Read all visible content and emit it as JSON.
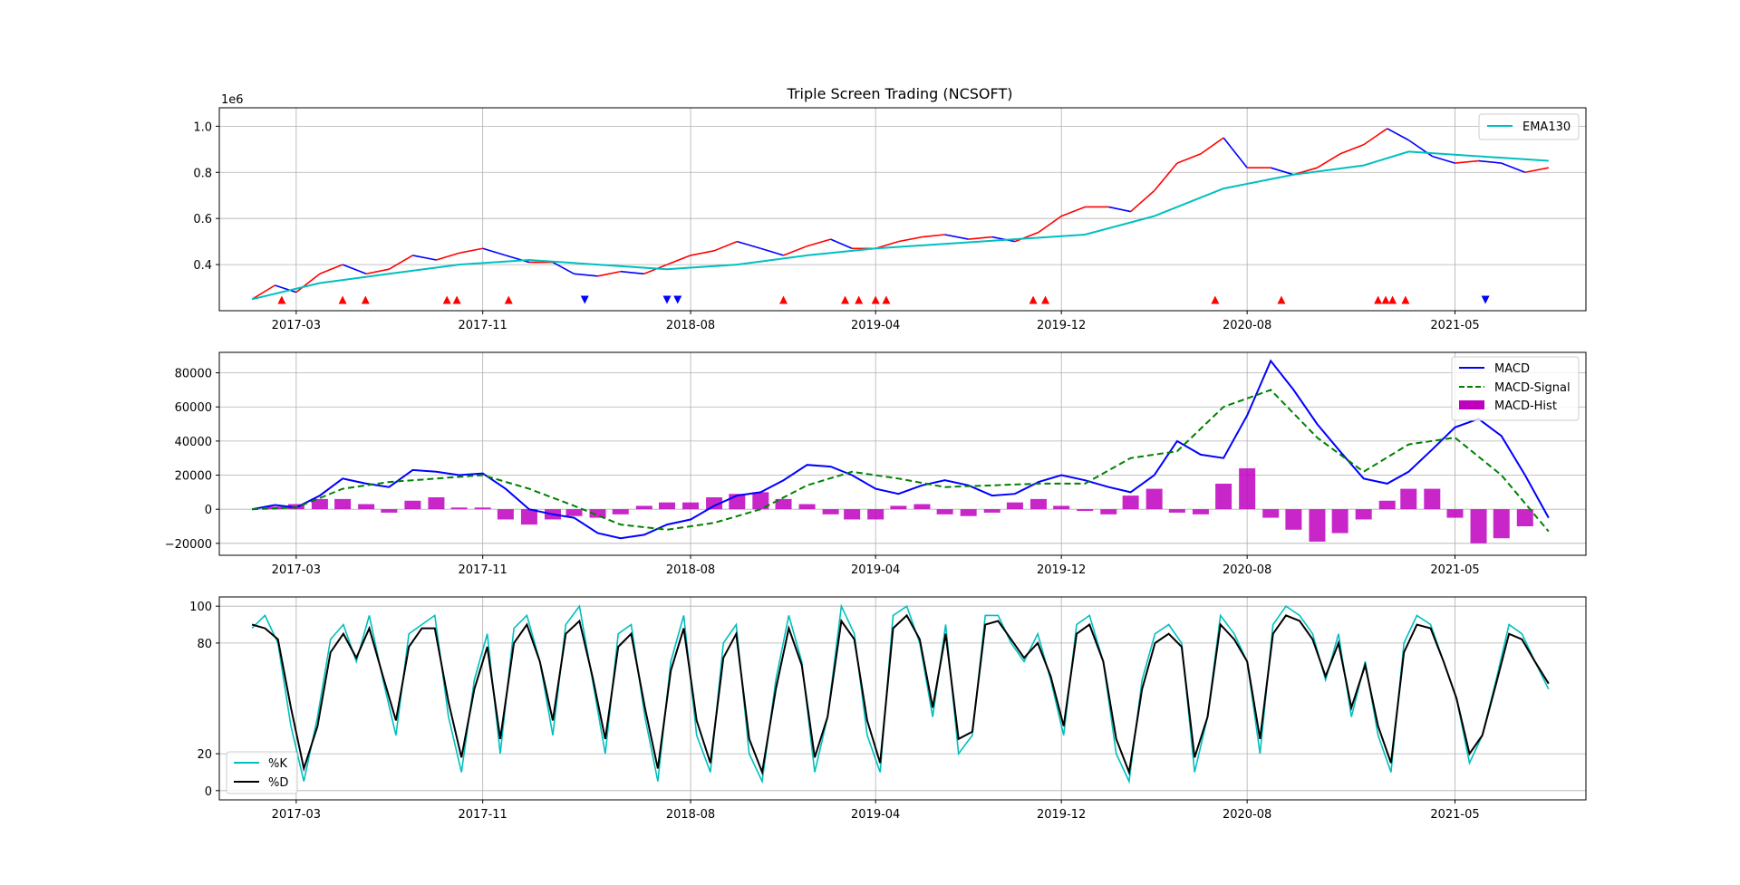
{
  "figure": {
    "title": "Triple Screen Trading (NCSOFT)",
    "background": "#ffffff"
  },
  "chart_data": [
    {
      "panel": "price",
      "type": "line",
      "title": "Triple Screen Trading (NCSOFT)",
      "x_tick_labels": [
        "2017-03",
        "2017-11",
        "2018-08",
        "2019-04",
        "2019-12",
        "2020-08",
        "2021-05"
      ],
      "x_ticks": [
        "2017-03-01",
        "2017-11-01",
        "2018-08-01",
        "2019-04-01",
        "2019-12-01",
        "2020-08-01",
        "2021-05-01"
      ],
      "x_range": [
        "2016-11-20",
        "2021-10-20"
      ],
      "y_scale_label": "1e6",
      "y_ticks": [
        0.4,
        0.6,
        0.8,
        1.0
      ],
      "ylim": [
        0.2,
        1.08
      ],
      "grid": true,
      "legend_position": "top-right",
      "candle_colors": {
        "up": "#ff0000",
        "down": "#0000ff"
      },
      "price": {
        "x": [
          "2017-01-02",
          "2017-02-01",
          "2017-03-01",
          "2017-04-01",
          "2017-05-01",
          "2017-06-01",
          "2017-07-01",
          "2017-08-01",
          "2017-09-01",
          "2017-10-01",
          "2017-11-01",
          "2017-12-01",
          "2018-01-01",
          "2018-02-01",
          "2018-03-01",
          "2018-04-01",
          "2018-05-01",
          "2018-06-01",
          "2018-07-01",
          "2018-08-01",
          "2018-09-01",
          "2018-10-01",
          "2018-11-01",
          "2018-12-01",
          "2019-01-01",
          "2019-02-01",
          "2019-03-01",
          "2019-04-01",
          "2019-05-01",
          "2019-06-01",
          "2019-07-01",
          "2019-08-01",
          "2019-09-01",
          "2019-10-01",
          "2019-11-01",
          "2019-12-01",
          "2020-01-01",
          "2020-02-01",
          "2020-03-01",
          "2020-04-01",
          "2020-05-01",
          "2020-06-01",
          "2020-07-01",
          "2020-08-01",
          "2020-09-01",
          "2020-10-01",
          "2020-11-01",
          "2020-12-01",
          "2021-01-01",
          "2021-02-01",
          "2021-03-01",
          "2021-04-01",
          "2021-05-01",
          "2021-06-01",
          "2021-07-01",
          "2021-08-01",
          "2021-09-01"
        ],
        "close": [
          0.25,
          0.31,
          0.28,
          0.36,
          0.4,
          0.36,
          0.38,
          0.44,
          0.42,
          0.45,
          0.47,
          0.44,
          0.41,
          0.41,
          0.36,
          0.35,
          0.37,
          0.36,
          0.4,
          0.44,
          0.46,
          0.5,
          0.47,
          0.44,
          0.48,
          0.51,
          0.47,
          0.47,
          0.5,
          0.52,
          0.53,
          0.51,
          0.52,
          0.5,
          0.54,
          0.61,
          0.65,
          0.65,
          0.63,
          0.72,
          0.84,
          0.88,
          0.95,
          0.82,
          0.82,
          0.79,
          0.82,
          0.88,
          0.92,
          0.99,
          0.94,
          0.87,
          0.84,
          0.85,
          0.84,
          0.8,
          0.82
        ]
      },
      "ema130": {
        "name": "EMA130",
        "color": "#00bfbf",
        "x": [
          "2017-01-02",
          "2017-04-01",
          "2017-07-01",
          "2017-10-01",
          "2018-01-01",
          "2018-04-01",
          "2018-07-01",
          "2018-10-01",
          "2019-01-01",
          "2019-04-01",
          "2019-07-01",
          "2019-10-01",
          "2020-01-01",
          "2020-04-01",
          "2020-07-01",
          "2020-10-01",
          "2021-01-01",
          "2021-03-01",
          "2021-06-01",
          "2021-09-01"
        ],
        "values": [
          0.25,
          0.32,
          0.36,
          0.4,
          0.42,
          0.4,
          0.38,
          0.4,
          0.44,
          0.47,
          0.49,
          0.51,
          0.53,
          0.61,
          0.73,
          0.79,
          0.83,
          0.89,
          0.87,
          0.85
        ]
      },
      "buy_signals": {
        "marker": "triangle-up",
        "color": "#ff0000",
        "y": 0.245,
        "x": [
          "2017-02-10",
          "2017-05-01",
          "2017-05-31",
          "2017-09-15",
          "2017-09-28",
          "2017-12-05",
          "2018-12-01",
          "2019-02-20",
          "2019-03-10",
          "2019-04-01",
          "2019-04-15",
          "2019-10-25",
          "2019-11-10",
          "2020-06-20",
          "2020-09-15",
          "2021-01-20",
          "2021-01-30",
          "2021-02-08",
          "2021-02-25"
        ]
      },
      "sell_signals": {
        "marker": "triangle-down",
        "color": "#0000ff",
        "y": 0.245,
        "x": [
          "2018-03-15",
          "2018-07-01",
          "2018-07-15",
          "2021-06-10"
        ]
      }
    },
    {
      "panel": "macd",
      "type": "line",
      "x_tick_labels": [
        "2017-03",
        "2017-11",
        "2018-08",
        "2019-04",
        "2019-12",
        "2020-08",
        "2021-05"
      ],
      "y_ticks": [
        -20000,
        0,
        20000,
        40000,
        60000,
        80000
      ],
      "ylim": [
        -27000,
        92000
      ],
      "grid": true,
      "legend_position": "top-right",
      "series": [
        {
          "name": "MACD",
          "color": "#0000ff",
          "style": "solid",
          "x": [
            "2017-01-02",
            "2017-02-01",
            "2017-03-01",
            "2017-04-01",
            "2017-05-01",
            "2017-06-01",
            "2017-07-01",
            "2017-08-01",
            "2017-09-01",
            "2017-10-01",
            "2017-11-01",
            "2017-12-01",
            "2018-01-01",
            "2018-02-01",
            "2018-03-01",
            "2018-04-01",
            "2018-05-01",
            "2018-06-01",
            "2018-07-01",
            "2018-08-01",
            "2018-09-01",
            "2018-10-01",
            "2018-11-01",
            "2018-12-01",
            "2019-01-01",
            "2019-02-01",
            "2019-03-01",
            "2019-04-01",
            "2019-05-01",
            "2019-06-01",
            "2019-07-01",
            "2019-08-01",
            "2019-09-01",
            "2019-10-01",
            "2019-11-01",
            "2019-12-01",
            "2020-01-01",
            "2020-02-01",
            "2020-03-01",
            "2020-04-01",
            "2020-05-01",
            "2020-06-01",
            "2020-07-01",
            "2020-08-01",
            "2020-09-01",
            "2020-10-01",
            "2020-11-01",
            "2020-12-01",
            "2021-01-01",
            "2021-02-01",
            "2021-03-01",
            "2021-04-01",
            "2021-05-01",
            "2021-06-01",
            "2021-07-01",
            "2021-08-01",
            "2021-09-01"
          ],
          "values": [
            0,
            2500,
            1000,
            8000,
            18000,
            15000,
            13000,
            23000,
            22000,
            20000,
            21000,
            12000,
            0,
            -3000,
            -5000,
            -14000,
            -17000,
            -15000,
            -9000,
            -6000,
            2000,
            8000,
            10000,
            17000,
            26000,
            25000,
            20000,
            12000,
            9000,
            14000,
            17000,
            14000,
            8000,
            9000,
            16000,
            20000,
            17000,
            13000,
            10000,
            20000,
            40000,
            32000,
            30000,
            55000,
            87000,
            70000,
            50000,
            34000,
            18000,
            15000,
            22000,
            35000,
            48000,
            53000,
            43000,
            20000,
            -5000
          ]
        },
        {
          "name": "MACD-Signal",
          "color": "#008000",
          "style": "dashed",
          "x": [
            "2017-01-02",
            "2017-03-01",
            "2017-05-01",
            "2017-07-01",
            "2017-09-01",
            "2017-11-01",
            "2018-01-01",
            "2018-03-01",
            "2018-05-01",
            "2018-07-01",
            "2018-09-01",
            "2018-11-01",
            "2019-01-01",
            "2019-03-01",
            "2019-05-01",
            "2019-07-01",
            "2019-09-01",
            "2019-11-01",
            "2020-01-01",
            "2020-03-01",
            "2020-05-01",
            "2020-07-01",
            "2020-09-01",
            "2020-11-01",
            "2021-01-01",
            "2021-03-01",
            "2021-05-01",
            "2021-07-01",
            "2021-09-01"
          ],
          "values": [
            0,
            1000,
            12000,
            16000,
            18000,
            20000,
            12000,
            2000,
            -9000,
            -12000,
            -8000,
            0,
            14000,
            22000,
            18000,
            13000,
            14000,
            15000,
            15000,
            30000,
            34000,
            60000,
            70000,
            42000,
            22000,
            38000,
            42000,
            20000,
            -13000
          ]
        }
      ],
      "histogram": {
        "name": "MACD-Hist",
        "color": "#bf00bf",
        "x": [
          "2017-02-01",
          "2017-03-01",
          "2017-04-01",
          "2017-05-01",
          "2017-06-01",
          "2017-07-01",
          "2017-08-01",
          "2017-09-01",
          "2017-10-01",
          "2017-11-01",
          "2017-12-01",
          "2018-01-01",
          "2018-02-01",
          "2018-03-01",
          "2018-04-01",
          "2018-05-01",
          "2018-06-01",
          "2018-07-01",
          "2018-08-01",
          "2018-09-01",
          "2018-10-01",
          "2018-11-01",
          "2018-12-01",
          "2019-01-01",
          "2019-02-01",
          "2019-03-01",
          "2019-04-01",
          "2019-05-01",
          "2019-06-01",
          "2019-07-01",
          "2019-08-01",
          "2019-09-01",
          "2019-10-01",
          "2019-11-01",
          "2019-12-01",
          "2020-01-01",
          "2020-02-01",
          "2020-03-01",
          "2020-04-01",
          "2020-05-01",
          "2020-06-01",
          "2020-07-01",
          "2020-08-01",
          "2020-09-01",
          "2020-10-01",
          "2020-11-01",
          "2020-12-01",
          "2021-01-01",
          "2021-02-01",
          "2021-03-01",
          "2021-04-01",
          "2021-05-01",
          "2021-06-01",
          "2021-07-01",
          "2021-08-01"
        ],
        "values": [
          1500,
          3000,
          6000,
          6000,
          3000,
          -2000,
          5000,
          7000,
          1000,
          1000,
          -6000,
          -9000,
          -6000,
          -4000,
          -5000,
          -3000,
          2000,
          4000,
          4000,
          7000,
          9000,
          10000,
          6000,
          3000,
          -3000,
          -6000,
          -6000,
          2000,
          3000,
          -3000,
          -4000,
          -2000,
          4000,
          6000,
          2000,
          -1000,
          -3000,
          8000,
          12000,
          -2000,
          -3000,
          15000,
          24000,
          -5000,
          -12000,
          -19000,
          -14000,
          -6000,
          5000,
          12000,
          12000,
          -5000,
          -20000,
          -17000,
          -10000
        ]
      }
    },
    {
      "panel": "stochastic",
      "type": "line",
      "x_tick_labels": [
        "2017-03",
        "2017-11",
        "2018-08",
        "2019-04",
        "2019-12",
        "2020-08",
        "2021-05"
      ],
      "y_ticks": [
        0,
        20,
        80,
        100
      ],
      "ylim": [
        -5,
        105
      ],
      "grid": true,
      "legend_position": "lower-left",
      "series": [
        {
          "name": "%K",
          "color": "#00bfbf",
          "x_start": "2017-01-02",
          "x_end": "2021-09-01",
          "values": [
            88,
            95,
            80,
            35,
            5,
            40,
            82,
            90,
            70,
            95,
            60,
            30,
            85,
            90,
            95,
            40,
            10,
            60,
            85,
            20,
            88,
            95,
            70,
            30,
            90,
            100,
            60,
            20,
            85,
            90,
            40,
            5,
            70,
            95,
            30,
            10,
            80,
            90,
            20,
            5,
            60,
            95,
            70,
            10,
            40,
            100,
            85,
            30,
            10,
            95,
            100,
            80,
            40,
            90,
            20,
            30,
            95,
            95,
            80,
            70,
            85,
            60,
            30,
            90,
            95,
            70,
            20,
            5,
            60,
            85,
            90,
            80,
            10,
            40,
            95,
            85,
            70,
            20,
            90,
            100,
            95,
            85,
            60,
            85,
            40,
            70,
            30,
            10,
            80,
            95,
            90,
            70,
            50,
            15,
            30,
            60,
            90,
            85,
            70,
            55
          ]
        },
        {
          "name": "%D",
          "color": "#000000",
          "x_start": "2017-01-02",
          "x_end": "2021-09-01",
          "values": [
            90,
            88,
            82,
            45,
            12,
            35,
            75,
            85,
            72,
            88,
            62,
            38,
            78,
            88,
            88,
            48,
            18,
            55,
            78,
            28,
            80,
            90,
            70,
            38,
            85,
            92,
            62,
            28,
            78,
            85,
            45,
            12,
            65,
            88,
            38,
            15,
            72,
            85,
            28,
            10,
            55,
            88,
            68,
            18,
            40,
            92,
            82,
            38,
            15,
            88,
            95,
            82,
            45,
            85,
            28,
            32,
            90,
            92,
            82,
            72,
            80,
            62,
            35,
            85,
            90,
            70,
            28,
            10,
            55,
            80,
            85,
            78,
            18,
            40,
            90,
            82,
            70,
            28,
            85,
            95,
            92,
            82,
            62,
            80,
            45,
            68,
            35,
            15,
            75,
            90,
            88,
            70,
            50,
            20,
            30,
            58,
            85,
            82,
            70,
            58
          ]
        }
      ]
    }
  ],
  "legends": {
    "price": [
      "EMA130"
    ],
    "macd": [
      "MACD",
      "MACD-Signal",
      "MACD-Hist"
    ],
    "stochastic": [
      "%K",
      "%D"
    ]
  }
}
